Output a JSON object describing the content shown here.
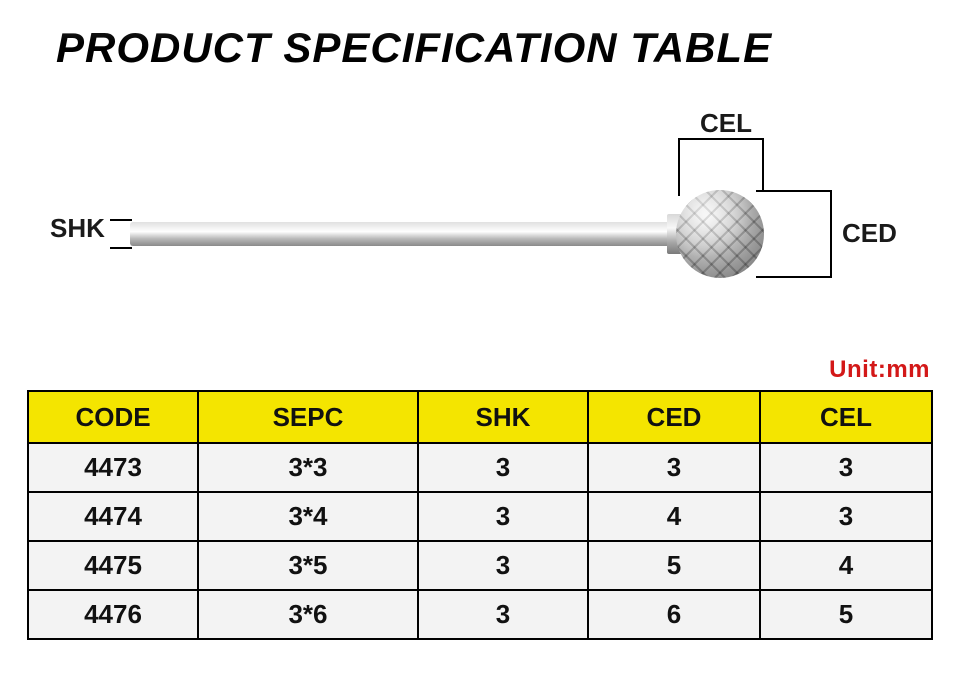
{
  "title": "PRODUCT SPECIFICATION TABLE",
  "diagram": {
    "labels": {
      "shk": "SHK",
      "cel": "CEL",
      "ced": "CED"
    },
    "line_color": "#000000",
    "shank_gradient": [
      "#e0e0e0",
      "#ffffff",
      "#b8b8b8",
      "#8a8a8a"
    ],
    "ball_gradient": [
      "#f2f2f2",
      "#c8c8c8",
      "#9a9a9a",
      "#6e6e6e"
    ]
  },
  "unit_label": "Unit:mm",
  "unit_color": "#d31818",
  "table": {
    "header_bg": "#f4e500",
    "cell_bg": "#f3f3f3",
    "border_color": "#000000",
    "columns": [
      "CODE",
      "SEPC",
      "SHK",
      "CED",
      "CEL"
    ],
    "rows": [
      [
        "4473",
        "3*3",
        "3",
        "3",
        "3"
      ],
      [
        "4474",
        "3*4",
        "3",
        "4",
        "3"
      ],
      [
        "4475",
        "3*5",
        "3",
        "5",
        "4"
      ],
      [
        "4476",
        "3*6",
        "3",
        "6",
        "5"
      ]
    ]
  }
}
